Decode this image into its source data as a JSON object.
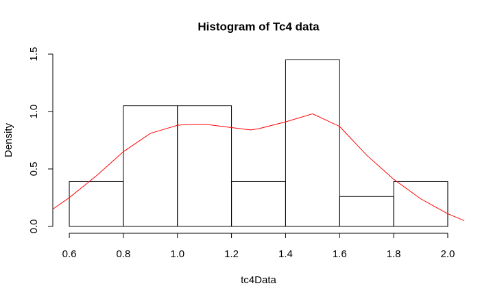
{
  "chart_data": {
    "type": "histogram",
    "title": "Histogram of Tc4 data",
    "xlabel": "tc4Data",
    "ylabel": "Density",
    "bins": [
      0.6,
      0.8,
      1.0,
      1.2,
      1.4,
      1.6,
      1.8,
      2.0
    ],
    "values": [
      0.39,
      1.05,
      1.05,
      0.39,
      1.45,
      0.26,
      0.39
    ],
    "color": "#000000",
    "xlim": [
      0.539,
      2.061
    ],
    "ylim": [
      -0.06,
      1.56
    ],
    "xticks": [
      0.6,
      0.8,
      {
        "value": 1.0,
        "label": "1.0"
      },
      1.2,
      1.4,
      1.6,
      1.8,
      {
        "value": 2.0,
        "label": "2.0"
      }
    ],
    "yticks": [
      {
        "value": 0,
        "label": "0.0"
      },
      0.5,
      {
        "value": 1.0,
        "label": "1.0"
      },
      1.5
    ],
    "curve": {
      "type": "line",
      "color": "#ff0000",
      "x": [
        0.539,
        0.6,
        0.7,
        0.8,
        0.9,
        1.0,
        1.05,
        1.1,
        1.2,
        1.27,
        1.3,
        1.4,
        1.5,
        1.6,
        1.7,
        1.8,
        1.9,
        2.0,
        2.061
      ],
      "values": [
        0.15,
        0.25,
        0.44,
        0.65,
        0.81,
        0.88,
        0.89,
        0.89,
        0.86,
        0.84,
        0.85,
        0.91,
        0.98,
        0.87,
        0.62,
        0.41,
        0.24,
        0.11,
        0.05
      ]
    }
  }
}
